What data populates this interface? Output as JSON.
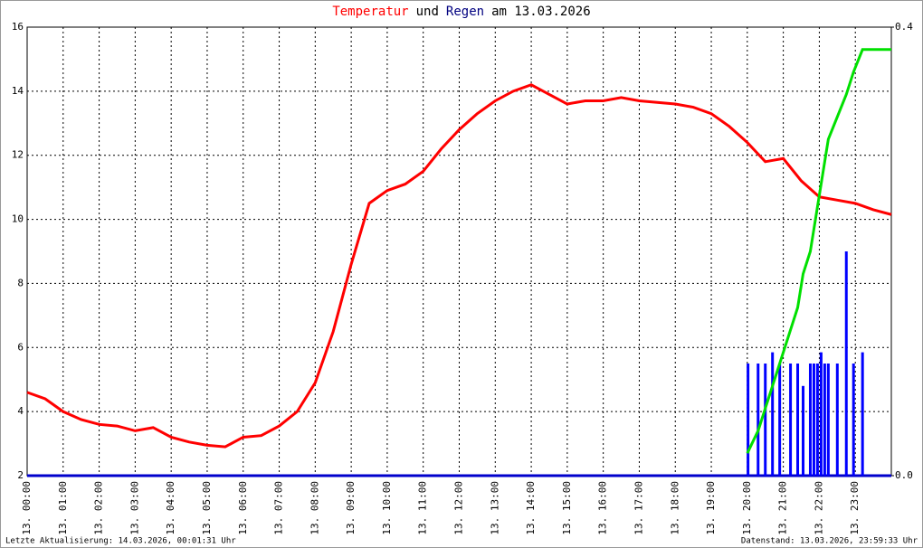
{
  "chart_data": {
    "type": "line",
    "title_parts": [
      {
        "text": "Temperatur",
        "color": "#ff0000"
      },
      {
        "text": "und",
        "color": "#000000"
      },
      {
        "text": "Regen",
        "color": "#000080"
      },
      {
        "text": "am 13.03.2026",
        "color": "#000000"
      }
    ],
    "xlim": [
      0,
      24
    ],
    "xticks": [
      {
        "value": 0,
        "label": "13. 00:00"
      },
      {
        "value": 1,
        "label": "13. 01:00"
      },
      {
        "value": 2,
        "label": "13. 02:00"
      },
      {
        "value": 3,
        "label": "13. 03:00"
      },
      {
        "value": 4,
        "label": "13. 04:00"
      },
      {
        "value": 5,
        "label": "13. 05:00"
      },
      {
        "value": 6,
        "label": "13. 06:00"
      },
      {
        "value": 7,
        "label": "13. 07:00"
      },
      {
        "value": 8,
        "label": "13. 08:00"
      },
      {
        "value": 9,
        "label": "13. 09:00"
      },
      {
        "value": 10,
        "label": "13. 10:00"
      },
      {
        "value": 11,
        "label": "13. 11:00"
      },
      {
        "value": 12,
        "label": "13. 12:00"
      },
      {
        "value": 13,
        "label": "13. 13:00"
      },
      {
        "value": 14,
        "label": "13. 14:00"
      },
      {
        "value": 15,
        "label": "13. 15:00"
      },
      {
        "value": 16,
        "label": "13. 16:00"
      },
      {
        "value": 17,
        "label": "13. 17:00"
      },
      {
        "value": 18,
        "label": "13. 18:00"
      },
      {
        "value": 19,
        "label": "13. 19:00"
      },
      {
        "value": 20,
        "label": "13. 20:00"
      },
      {
        "value": 21,
        "label": "13. 21:00"
      },
      {
        "value": 22,
        "label": "13. 22:00"
      },
      {
        "value": 23,
        "label": "13. 23:00"
      }
    ],
    "ylim": [
      2,
      16
    ],
    "yticks": [
      2,
      4,
      6,
      8,
      10,
      12,
      14,
      16
    ],
    "y2lim": [
      0,
      0.4
    ],
    "y2ticks": [
      {
        "value": 0,
        "label": "0.0"
      },
      0.4
    ],
    "grid": true,
    "series": [
      {
        "type": "line",
        "color": "#ff0000",
        "x": [
          0,
          0.5,
          1,
          1.5,
          2,
          2.5,
          3,
          3.5,
          4,
          4.5,
          5,
          5.5,
          6,
          6.5,
          7,
          7.5,
          8,
          8.5,
          9,
          9.5,
          10,
          10.5,
          11,
          11.5,
          12,
          12.5,
          13,
          13.5,
          14,
          14.5,
          15,
          15.5,
          16,
          16.5,
          17,
          17.5,
          18,
          18.5,
          19,
          19.5,
          20,
          20.5,
          21,
          21.5,
          22,
          22.5,
          23,
          23.5,
          24
        ],
        "values": [
          4.6,
          4.4,
          4.0,
          3.75,
          3.6,
          3.55,
          3.4,
          3.5,
          3.2,
          3.05,
          2.95,
          2.9,
          3.2,
          3.25,
          3.55,
          4.0,
          4.9,
          6.5,
          8.6,
          10.5,
          10.9,
          11.1,
          11.5,
          12.2,
          12.8,
          13.3,
          13.7,
          14.0,
          14.2,
          13.9,
          13.6,
          13.7,
          13.7,
          13.8,
          13.7,
          13.65,
          13.6,
          13.5,
          13.3,
          12.9,
          12.4,
          11.8,
          11.9,
          11.2,
          10.7,
          10.6,
          10.5,
          10.3,
          10.15
        ]
      },
      {
        "type": "bar",
        "axis": "y2",
        "color": "#0000ff",
        "x": [
          20.02,
          20.3,
          20.5,
          20.7,
          20.9,
          21.2,
          21.4,
          21.55,
          21.75,
          21.85,
          21.95,
          22.05,
          22.15,
          22.25,
          22.5,
          22.75,
          22.95,
          23.2
        ],
        "values": [
          0.1,
          0.1,
          0.1,
          0.11,
          0.1,
          0.1,
          0.1,
          0.08,
          0.1,
          0.1,
          0.1,
          0.11,
          0.1,
          0.1,
          0.1,
          0.2,
          0.1,
          0.11
        ]
      },
      {
        "type": "line",
        "axis": "y2",
        "color": "#00e000",
        "x": [
          20.0,
          20.3,
          20.5,
          20.7,
          20.9,
          21.2,
          21.4,
          21.55,
          21.75,
          21.85,
          21.95,
          22.05,
          22.15,
          22.25,
          22.5,
          22.75,
          22.95,
          23.2,
          24
        ],
        "values": [
          0.02,
          0.04,
          0.06,
          0.08,
          0.1,
          0.13,
          0.15,
          0.18,
          0.2,
          0.22,
          0.24,
          0.26,
          0.28,
          0.3,
          0.32,
          0.34,
          0.36,
          0.38,
          0.38
        ]
      }
    ],
    "footer_left": "Letzte Aktualisierung: 14.03.2026, 00:01:31 Uhr",
    "footer_right": "Datenstand: 13.03.2026, 23:59:33 Uhr"
  }
}
